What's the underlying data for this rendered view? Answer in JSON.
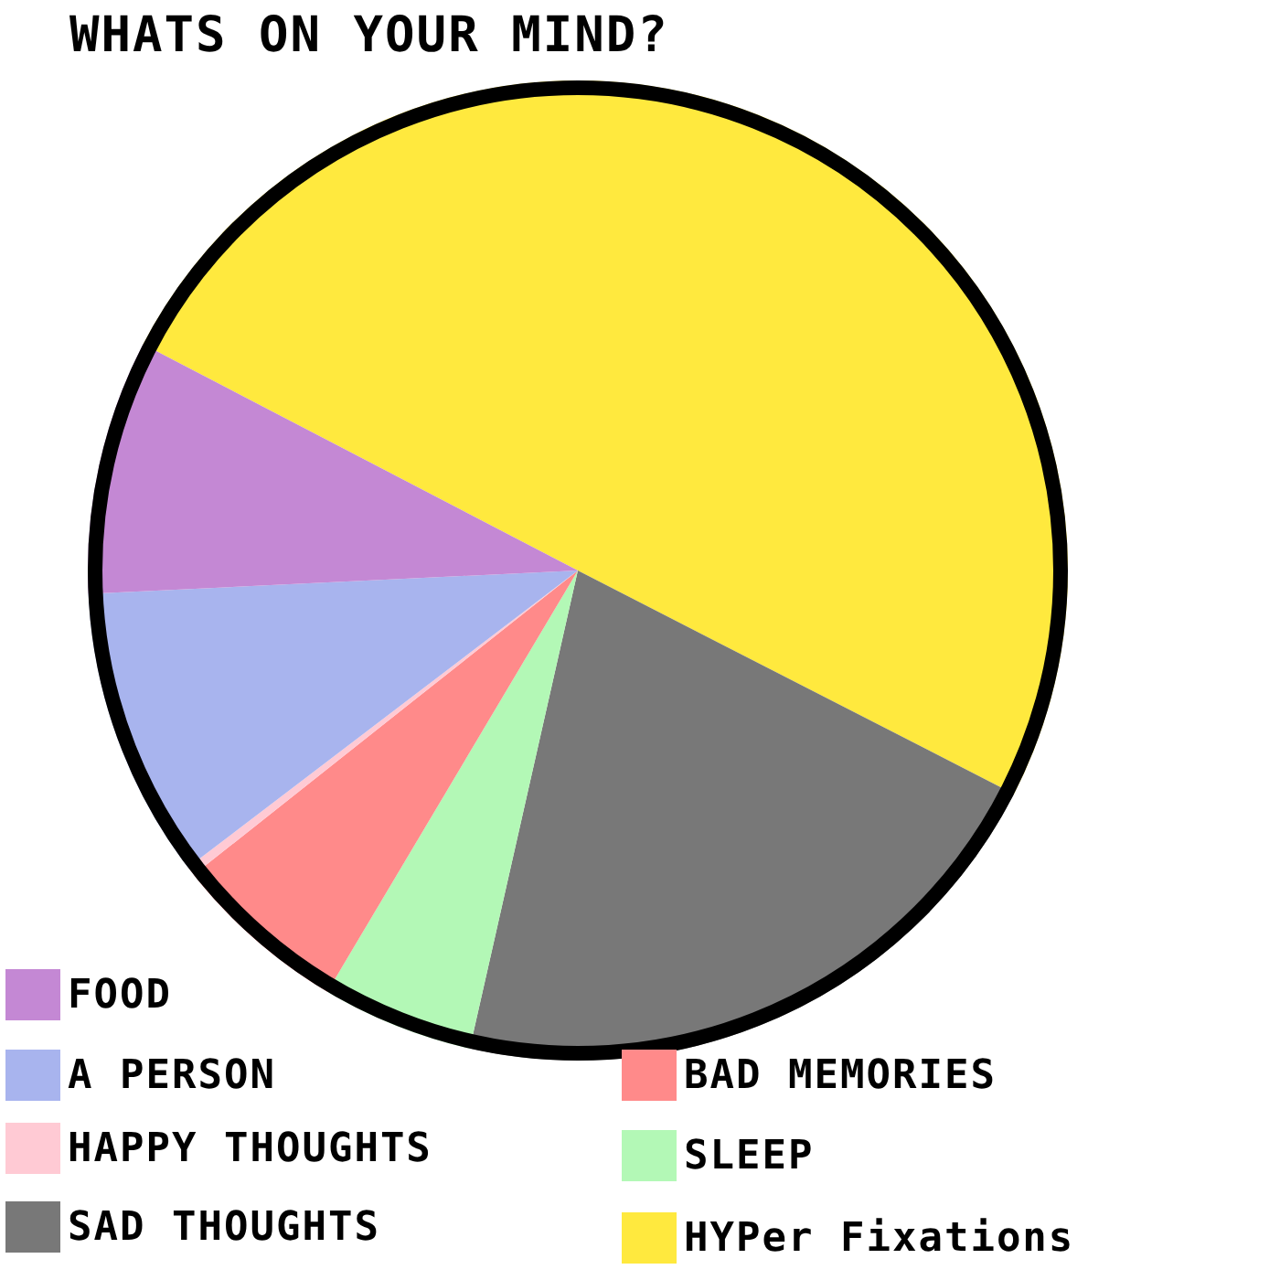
{
  "chart_data": {
    "type": "pie",
    "title": "WHATS ON YOUR MIND?",
    "categories": [
      "FOOD",
      "A PERSON",
      "HAPPY THOUGHTS",
      "BAD MEMORIES",
      "SLEEP",
      "SAD THOUGHTS",
      "HYPer Fixations"
    ],
    "values": [
      8.4,
      9.6,
      0.3,
      5.8,
      5,
      21,
      49.9
    ],
    "colors": [
      "#c488d4",
      "#a8b4ee",
      "#ffcad4",
      "#ff8a8a",
      "#b3f8b6",
      "#787878",
      "#ffe93e"
    ],
    "legend": "bottom"
  }
}
